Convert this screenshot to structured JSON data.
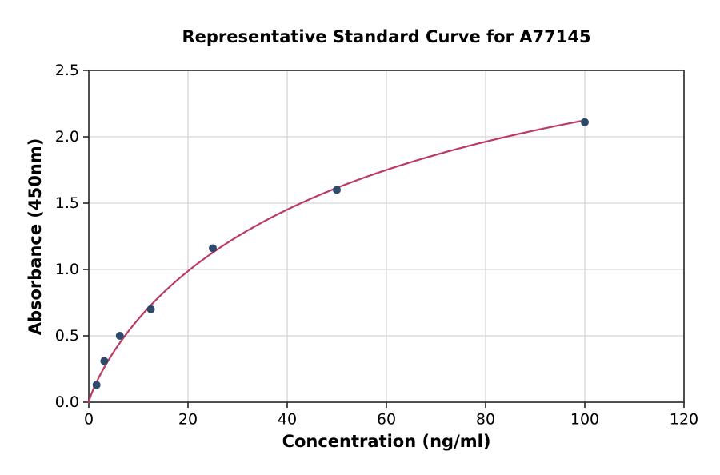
{
  "figure": {
    "background": "#ffffff"
  },
  "chart_data": {
    "type": "scatter",
    "title": "Representative Standard Curve for A77145",
    "xlabel": "Concentration (ng/ml)",
    "ylabel": "Absorbance (450nm)",
    "xlim": [
      0,
      120
    ],
    "ylim": [
      0,
      2.5
    ],
    "x_tick_labels": [
      "0",
      "20",
      "40",
      "60",
      "80",
      "100",
      "120"
    ],
    "y_tick_labels": [
      "0.0",
      "0.5",
      "1.0",
      "1.5",
      "2.0",
      "2.5"
    ],
    "grid": true,
    "legend": null,
    "points": [
      {
        "x": 1.56,
        "y": 0.13
      },
      {
        "x": 3.13,
        "y": 0.31
      },
      {
        "x": 6.25,
        "y": 0.5
      },
      {
        "x": 12.5,
        "y": 0.7
      },
      {
        "x": 25,
        "y": 1.16
      },
      {
        "x": 50,
        "y": 1.6
      },
      {
        "x": 100,
        "y": 2.11
      }
    ],
    "fit_curve": {
      "model": "4PL",
      "params": {
        "bottom": 0,
        "top": 3.5,
        "ec50": 60,
        "hill": 0.85
      },
      "x_range": [
        0,
        100
      ]
    },
    "colors": {
      "marker": "#2d4a6d",
      "curve": "#bc3a63",
      "grid": "#d5d5d5",
      "frame": "#3d3d3d",
      "tick": "#222222",
      "text": "#000000",
      "background": "#ffffff"
    }
  }
}
